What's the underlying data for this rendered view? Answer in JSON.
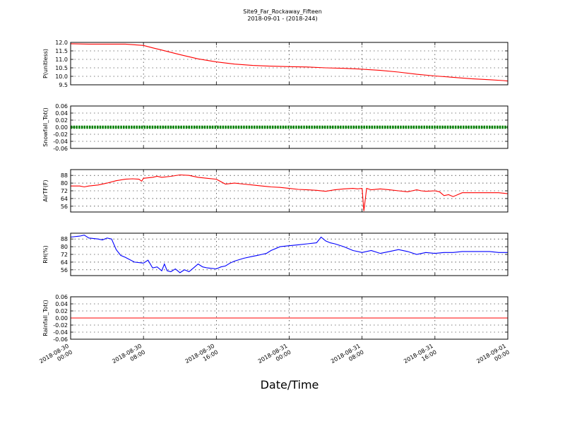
{
  "chart_data": {
    "type": "line",
    "title": "Site9_Far_Rockaway_Fifteen",
    "subtitle": "2018-09-01 - (2018-244)",
    "xlabel": "Date/Time",
    "x_ticks": [
      [
        "2018-08-30",
        "00:00"
      ],
      [
        "2018-08-30",
        "08:00"
      ],
      [
        "2018-08-30",
        "16:00"
      ],
      [
        "2018-08-31",
        "00:00"
      ],
      [
        "2018-08-31",
        "08:00"
      ],
      [
        "2018-08-31",
        "16:00"
      ],
      [
        "2018-09-01",
        "00:00"
      ]
    ],
    "xlim": [
      "2018-08-30 00:00",
      "2018-09-01 00:00"
    ],
    "panels": [
      {
        "ylabel": "P(unitless)",
        "color": "#ff0000",
        "ylim": [
          9.5,
          12.0
        ],
        "yticks": [
          "12.0",
          "11.5",
          "11.0",
          "10.5",
          "10.0",
          "9.5"
        ],
        "grid": true,
        "x": [
          0,
          2,
          4,
          6,
          8,
          9,
          10,
          12,
          14,
          16,
          18,
          20,
          22,
          24,
          26,
          28,
          30,
          32,
          34,
          36,
          38,
          40,
          42,
          44,
          46,
          47.5,
          48
        ],
        "y": [
          11.92,
          11.9,
          11.9,
          11.9,
          11.82,
          11.68,
          11.55,
          11.28,
          11.03,
          10.85,
          10.72,
          10.64,
          10.6,
          10.57,
          10.55,
          10.5,
          10.47,
          10.42,
          10.35,
          10.25,
          10.12,
          10.02,
          9.94,
          9.86,
          9.8,
          9.75,
          9.72
        ]
      },
      {
        "ylabel": "Snowfall_Tot()",
        "color": "#008000",
        "ylim": [
          -0.06,
          0.06
        ],
        "yticks": [
          "0.06",
          "0.04",
          "0.02",
          "0.00",
          "-0.02",
          "-0.04",
          "-0.06"
        ],
        "grid": true,
        "marker": "dots",
        "x": [
          0,
          48
        ],
        "y": [
          0,
          0
        ]
      },
      {
        "ylabel": "AirTF(F)",
        "color": "#ff0000",
        "ylim": [
          50,
          94
        ],
        "yticks": [
          "88",
          "80",
          "72",
          "64",
          "56"
        ],
        "grid": true,
        "x": [
          0,
          1,
          1.5,
          2,
          3,
          4,
          5,
          6,
          6.8,
          7.5,
          7.8,
          8,
          9,
          9.5,
          10,
          11,
          12,
          13,
          14,
          15,
          16,
          17,
          18,
          19,
          20,
          21,
          22,
          23,
          24,
          25,
          26,
          27,
          28,
          29,
          30,
          31,
          31.5,
          32,
          32.2,
          32.5,
          33,
          34,
          35,
          36,
          37,
          37.5,
          38,
          38.5,
          39,
          40,
          40.5,
          41,
          41.5,
          42,
          43,
          44,
          45,
          46,
          47,
          48
        ],
        "y": [
          77,
          77,
          76,
          77,
          78,
          80,
          82.5,
          84,
          84.5,
          84,
          82,
          85,
          86,
          87,
          86,
          87,
          88.5,
          88,
          86,
          85,
          84,
          79,
          80,
          79,
          78,
          77,
          76,
          75.5,
          74.5,
          73.5,
          73,
          72.5,
          71.5,
          73,
          74,
          74.5,
          74,
          74.5,
          51,
          74.5,
          73,
          74,
          73,
          72,
          71,
          72,
          73,
          72,
          71.5,
          72,
          71,
          67,
          68,
          66,
          70,
          70,
          70,
          70,
          70,
          69
        ]
      },
      {
        "ylabel": "RH(%)",
        "color": "#0000ff",
        "ylim": [
          50,
          94
        ],
        "yticks": [
          "88",
          "80",
          "72",
          "64",
          "56"
        ],
        "grid": true,
        "x": [
          0,
          1,
          1.5,
          2,
          3,
          3.5,
          4,
          4.5,
          5,
          5.5,
          6,
          7,
          8,
          8.5,
          9,
          9.5,
          10,
          10.3,
          10.6,
          11,
          11.5,
          12,
          12.5,
          13,
          13.5,
          14,
          14.5,
          15,
          16,
          16.5,
          17,
          17.5,
          18,
          19,
          20,
          20.5,
          21,
          21.5,
          22,
          23,
          24,
          25,
          26,
          27,
          27.5,
          28,
          28.5,
          29,
          30,
          31,
          32,
          33,
          34,
          35,
          36,
          37,
          38,
          39,
          40,
          41,
          42,
          43,
          44,
          45,
          46,
          47,
          48
        ],
        "y": [
          90,
          91,
          92,
          89,
          88,
          87,
          89,
          88,
          77,
          71,
          69,
          64,
          63,
          66,
          58,
          59,
          55,
          62,
          55,
          54,
          57,
          53,
          56,
          54,
          58,
          62,
          59,
          58,
          57,
          59,
          60,
          63,
          65,
          68,
          70,
          71,
          72,
          73,
          76,
          80,
          81,
          82,
          83,
          84,
          90,
          86,
          84,
          83,
          80,
          76,
          74,
          76,
          73,
          75,
          77,
          75,
          72,
          74,
          73,
          74,
          74,
          75,
          75,
          75,
          75,
          74,
          74
        ]
      },
      {
        "ylabel": "Rainfall_Tot()",
        "color": "#ff0000",
        "ylim": [
          -0.06,
          0.06
        ],
        "yticks": [
          "0.06",
          "0.04",
          "0.02",
          "0.00",
          "-0.02",
          "-0.04",
          "-0.06"
        ],
        "grid": true,
        "x": [
          0,
          48
        ],
        "y": [
          0,
          0
        ]
      }
    ]
  }
}
